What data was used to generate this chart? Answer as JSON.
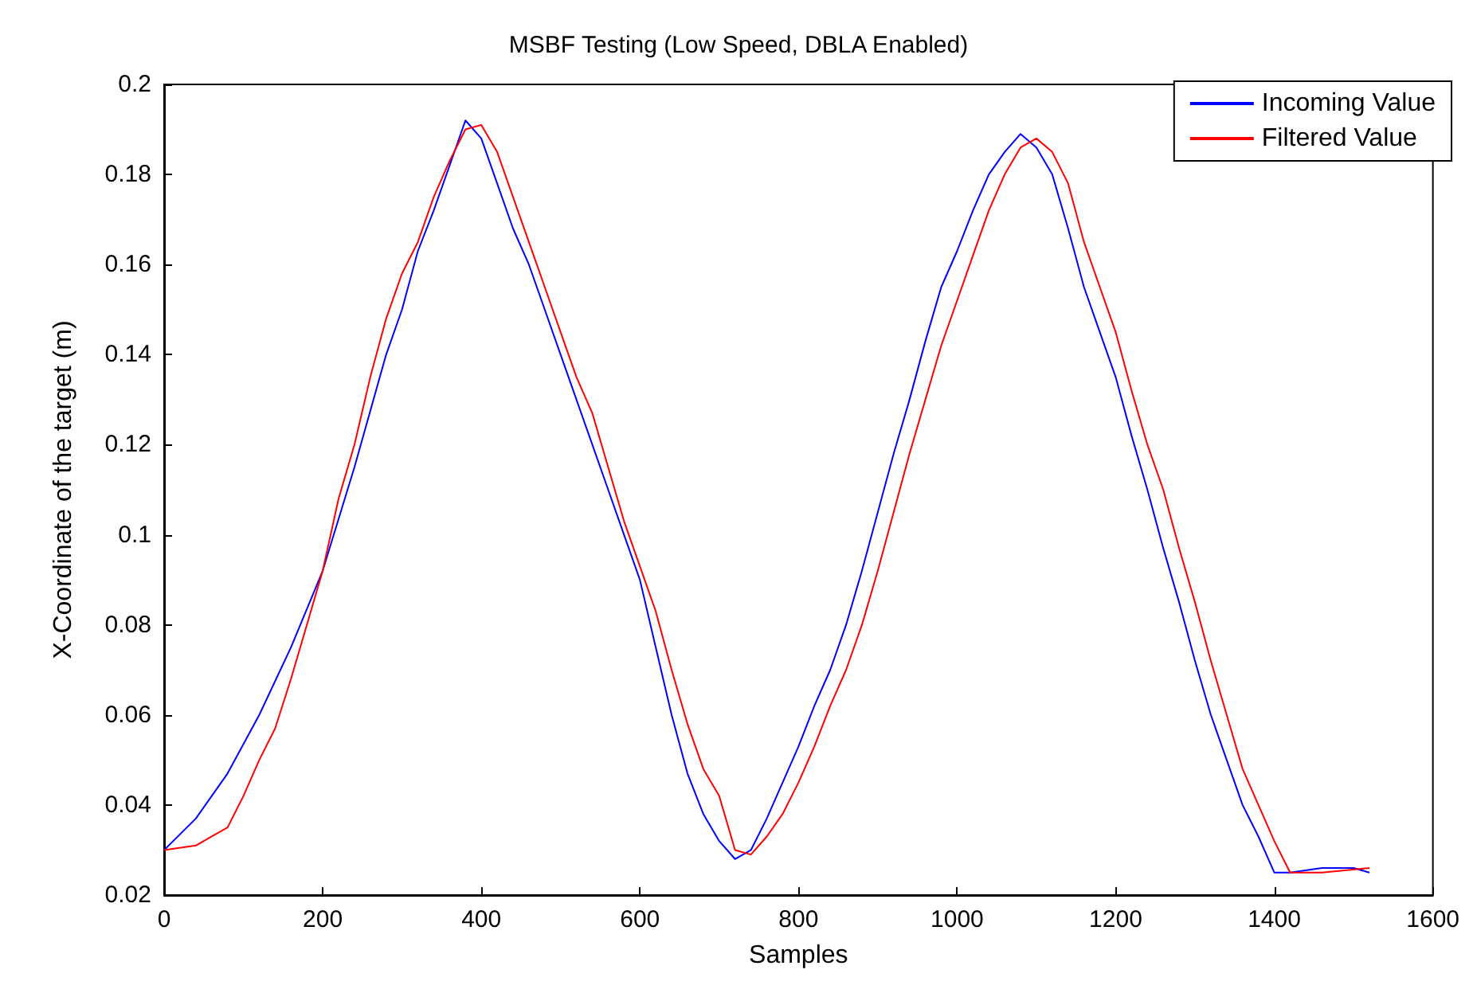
{
  "chart_data": {
    "type": "line",
    "title": "MSBF Testing (Low Speed, DBLA Enabled)",
    "xlabel": "Samples",
    "ylabel": "X-Coordinate of the target (m)",
    "xlim": [
      0,
      1600
    ],
    "xticks": [
      0,
      200,
      400,
      600,
      800,
      1000,
      1200,
      1400,
      1600
    ],
    "ylim": [
      0.02,
      0.2
    ],
    "yticks": [
      0.02,
      0.04,
      0.06,
      0.08,
      0.1,
      0.12,
      0.14,
      0.16,
      0.18,
      0.2
    ],
    "grid": false,
    "legend": "top right",
    "marker": "none",
    "line_style": "solid",
    "series": [
      {
        "name": "Incoming Value",
        "color": "#0000ff",
        "x": [
          0,
          40,
          80,
          120,
          160,
          200,
          240,
          280,
          300,
          320,
          340,
          360,
          380,
          400,
          420,
          440,
          460,
          480,
          500,
          520,
          540,
          560,
          580,
          600,
          620,
          640,
          660,
          680,
          700,
          720,
          740,
          760,
          780,
          800,
          820,
          840,
          860,
          880,
          900,
          920,
          940,
          960,
          980,
          1000,
          1020,
          1040,
          1060,
          1080,
          1100,
          1120,
          1140,
          1160,
          1180,
          1200,
          1220,
          1240,
          1260,
          1280,
          1300,
          1320,
          1340,
          1360,
          1380,
          1400,
          1420,
          1460,
          1500,
          1520
        ],
        "values": [
          0.03,
          0.037,
          0.047,
          0.06,
          0.075,
          0.092,
          0.115,
          0.14,
          0.15,
          0.163,
          0.172,
          0.182,
          0.192,
          0.188,
          0.178,
          0.168,
          0.16,
          0.15,
          0.14,
          0.13,
          0.12,
          0.11,
          0.1,
          0.09,
          0.075,
          0.06,
          0.047,
          0.038,
          0.032,
          0.028,
          0.03,
          0.037,
          0.045,
          0.053,
          0.062,
          0.07,
          0.08,
          0.092,
          0.105,
          0.118,
          0.13,
          0.143,
          0.155,
          0.163,
          0.172,
          0.18,
          0.185,
          0.189,
          0.186,
          0.18,
          0.168,
          0.155,
          0.145,
          0.135,
          0.122,
          0.11,
          0.097,
          0.085,
          0.072,
          0.06,
          0.05,
          0.04,
          0.033,
          0.025,
          0.025,
          0.026,
          0.026,
          0.025
        ]
      },
      {
        "name": "Filtered Value",
        "color": "#ff0000",
        "x": [
          0,
          40,
          60,
          80,
          100,
          120,
          140,
          160,
          180,
          200,
          220,
          240,
          260,
          280,
          300,
          320,
          340,
          360,
          380,
          400,
          420,
          440,
          460,
          480,
          500,
          520,
          540,
          560,
          580,
          600,
          620,
          640,
          660,
          680,
          700,
          720,
          740,
          760,
          780,
          800,
          820,
          840,
          860,
          880,
          900,
          920,
          940,
          960,
          980,
          1000,
          1020,
          1040,
          1060,
          1080,
          1100,
          1120,
          1140,
          1160,
          1180,
          1200,
          1220,
          1240,
          1260,
          1280,
          1300,
          1320,
          1340,
          1360,
          1380,
          1400,
          1420,
          1460,
          1520
        ],
        "values": [
          0.03,
          0.031,
          0.033,
          0.035,
          0.042,
          0.05,
          0.057,
          0.068,
          0.08,
          0.092,
          0.108,
          0.12,
          0.135,
          0.148,
          0.158,
          0.165,
          0.175,
          0.183,
          0.19,
          0.191,
          0.185,
          0.175,
          0.165,
          0.155,
          0.145,
          0.135,
          0.127,
          0.115,
          0.103,
          0.093,
          0.083,
          0.07,
          0.058,
          0.048,
          0.042,
          0.03,
          0.029,
          0.033,
          0.038,
          0.045,
          0.053,
          0.062,
          0.07,
          0.08,
          0.092,
          0.105,
          0.118,
          0.13,
          0.142,
          0.152,
          0.162,
          0.172,
          0.18,
          0.186,
          0.188,
          0.185,
          0.178,
          0.165,
          0.155,
          0.145,
          0.132,
          0.12,
          0.11,
          0.097,
          0.085,
          0.072,
          0.06,
          0.048,
          0.04,
          0.032,
          0.025,
          0.025,
          0.026
        ]
      }
    ]
  }
}
